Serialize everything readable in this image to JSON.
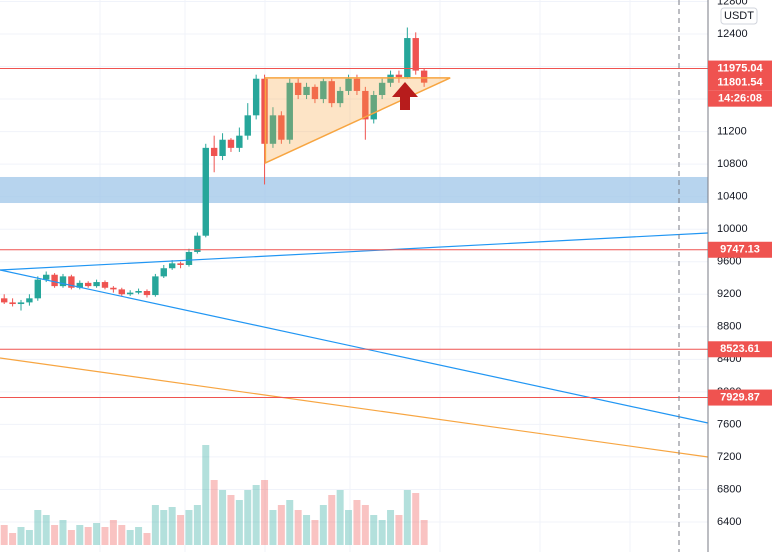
{
  "chart_data": {
    "type": "candlestick",
    "currency": "USDT",
    "xlim": [
      -0.5,
      83.8
    ],
    "ylim": [
      6031,
      12818
    ],
    "yticks": [
      6400,
      6800,
      7200,
      7600,
      8000,
      8400,
      8800,
      9200,
      9600,
      10000,
      10400,
      10800,
      11200,
      11600,
      12000,
      12400,
      12800
    ],
    "grid": true,
    "up_color": "#26a69a",
    "down_color": "#ef5350",
    "open": [
      9150,
      9100,
      9080,
      9100,
      9150,
      9380,
      9440,
      9300,
      9420,
      9280,
      9340,
      9300,
      9350,
      9280,
      9260,
      9200,
      9220,
      9240,
      9190,
      9420,
      9520,
      9580,
      9560,
      9720,
      9920,
      11000,
      10900,
      11100,
      11000,
      11150,
      11400,
      11850,
      11050,
      11400,
      11100,
      11800,
      11650,
      11750,
      11600,
      11820,
      11550,
      11700,
      11850,
      11700,
      11350,
      11650,
      11800,
      11900,
      11870,
      12350,
      11950
    ],
    "high": [
      9200,
      9150,
      9130,
      9200,
      9420,
      9480,
      9460,
      9450,
      9440,
      9370,
      9360,
      9380,
      9370,
      9300,
      9280,
      9250,
      9270,
      9260,
      9450,
      9560,
      9620,
      9600,
      9760,
      9960,
      11050,
      11150,
      11180,
      11120,
      11250,
      11550,
      11900,
      11900,
      11500,
      11450,
      11850,
      11850,
      11800,
      11780,
      11850,
      11850,
      11750,
      11900,
      11900,
      11750,
      11700,
      11850,
      11950,
      11950,
      12480,
      12420,
      11980
    ],
    "low": [
      9080,
      9050,
      9000,
      9060,
      9120,
      9350,
      9280,
      9280,
      9260,
      9260,
      9280,
      9280,
      9260,
      9220,
      9180,
      9180,
      9200,
      9160,
      9170,
      9400,
      9500,
      9520,
      9540,
      9700,
      9900,
      10700,
      10850,
      10950,
      10950,
      11100,
      11350,
      10550,
      11000,
      11050,
      11050,
      11600,
      11600,
      11550,
      11550,
      11500,
      11500,
      11650,
      11650,
      11100,
      11300,
      11600,
      11750,
      11800,
      11850,
      11900,
      11750
    ],
    "close": [
      9100,
      9080,
      9100,
      9150,
      9380,
      9440,
      9300,
      9420,
      9280,
      9340,
      9300,
      9350,
      9280,
      9260,
      9200,
      9220,
      9240,
      9190,
      9420,
      9520,
      9580,
      9560,
      9720,
      9920,
      11000,
      10900,
      11100,
      11000,
      11150,
      11400,
      11850,
      11050,
      11400,
      11100,
      11800,
      11650,
      11750,
      11600,
      11820,
      11550,
      11700,
      11850,
      11700,
      11350,
      11650,
      11800,
      11900,
      11870,
      12350,
      11950,
      11801.54
    ],
    "volume": [
      20,
      12,
      18,
      15,
      35,
      30,
      20,
      25,
      15,
      20,
      18,
      22,
      18,
      25,
      20,
      15,
      18,
      12,
      40,
      35,
      38,
      30,
      35,
      40,
      100,
      65,
      55,
      50,
      45,
      55,
      60,
      65,
      35,
      40,
      45,
      35,
      30,
      25,
      40,
      50,
      55,
      35,
      45,
      40,
      30,
      25,
      35,
      30,
      55,
      52,
      25
    ],
    "volume_ylim": [
      0,
      120
    ],
    "countdown": "14:26:08",
    "price_lines": [
      {
        "value": 11975.04,
        "color": "#ef5350"
      },
      {
        "value": 9747.13,
        "color": "#ef5350"
      },
      {
        "value": 8523.61,
        "color": "#ef5350"
      },
      {
        "value": 7929.87,
        "color": "#ef5350"
      }
    ],
    "zone": {
      "from": 10322,
      "to": 10642,
      "color": "#9fc5e8"
    },
    "trendlines": [
      {
        "x": [
          -0.5,
          83.8
        ],
        "y": [
          9498,
          9953
        ],
        "color": "#2196f3"
      },
      {
        "x": [
          -0.5,
          83.8
        ],
        "y": [
          9498,
          7617
        ],
        "color": "#2196f3"
      },
      {
        "x": [
          -0.5,
          83.8
        ],
        "y": [
          8416,
          7199
        ],
        "color": "#f7a541"
      }
    ],
    "triangle": {
      "x": [
        31.1,
        53.1,
        31.1
      ],
      "y": [
        11860,
        11860,
        10815
      ],
      "color": "#f7a541"
    }
  }
}
